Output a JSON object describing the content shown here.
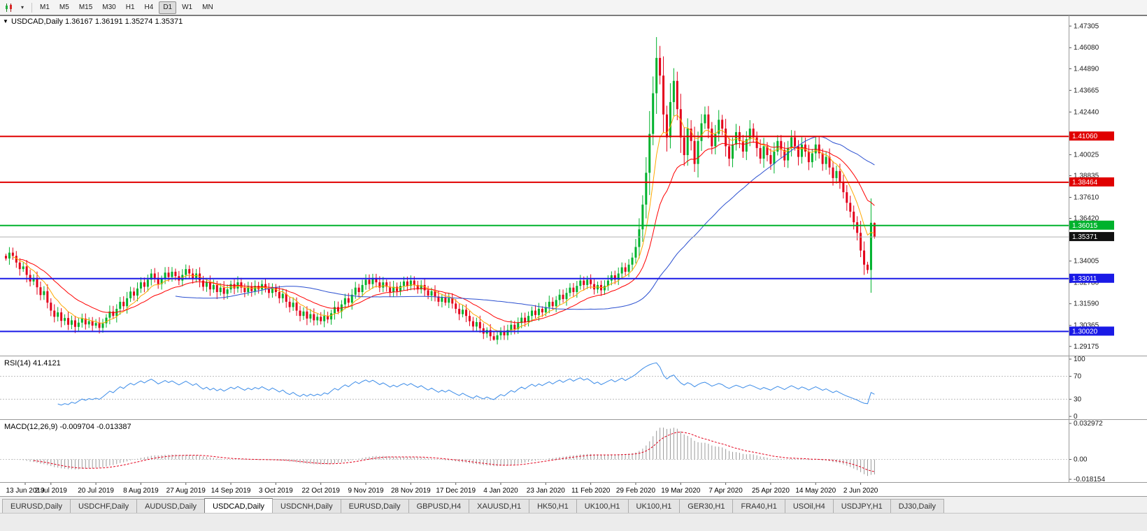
{
  "toolbar": {
    "chart_mode_icon": "candlestick-chart",
    "dropdown_icon": "chevron-down",
    "timeframes": [
      "M1",
      "M5",
      "M15",
      "M30",
      "H1",
      "H4",
      "D1",
      "W1",
      "MN"
    ],
    "active_timeframe": "D1"
  },
  "chart": {
    "title_line": "USDCAD,Daily 1.36167 1.36191 1.35274 1.35371",
    "symbol": "USDCAD",
    "timeframe": "Daily",
    "collapse_icon": "▼"
  },
  "panels": {
    "rsi_label": "RSI(14) 41.4121",
    "macd_label": "MACD(12,26,9) -0.009704 -0.013387"
  },
  "colors": {
    "up": "#00b22d",
    "down": "#e3001b",
    "ma_fast": "#ffa800",
    "ma_mid": "#ff0000",
    "ma_slow": "#2a4fd0",
    "rsi_line": "#3c8ce8",
    "macd_hist": "#9a9a9a",
    "macd_signal": "#e3001b",
    "line_red": "#e00000",
    "line_green": "#00b22d",
    "line_blue": "#1a1ae6",
    "current_label_bg": "#111111"
  },
  "chart_data": {
    "type": "candlestick",
    "symbol": "USDCAD",
    "period": "Daily",
    "visible_quote": {
      "open": 1.36167,
      "high": 1.36191,
      "low": 1.35274,
      "close": 1.35371
    },
    "price_range": {
      "max": 1.4775,
      "min": 1.2885
    },
    "y_ticks": [
      1.47305,
      1.4608,
      1.4489,
      1.43665,
      1.4244,
      1.40025,
      1.38835,
      1.3761,
      1.3642,
      1.34005,
      1.3278,
      1.3159,
      1.30365,
      1.29175
    ],
    "hlines": [
      {
        "price": 1.4106,
        "label": "1.41060",
        "color": "#e00000"
      },
      {
        "price": 1.38464,
        "label": "1.38464",
        "color": "#e00000"
      },
      {
        "price": 1.36015,
        "label": "1.36015",
        "color": "#00b22d"
      },
      {
        "price": 1.33011,
        "label": "1.33011",
        "color": "#1a1ae6"
      },
      {
        "price": 1.3002,
        "label": "1.30020",
        "color": "#1a1ae6"
      }
    ],
    "current_price": {
      "price": 1.35371,
      "label": "1.35371"
    },
    "x_labels": [
      "13 Jun 2019",
      "2 Jul 2019",
      "20 Jul 2019",
      "8 Aug 2019",
      "27 Aug 2019",
      "14 Sep 2019",
      "3 Oct 2019",
      "22 Oct 2019",
      "9 Nov 2019",
      "28 Nov 2019",
      "17 Dec 2019",
      "4 Jan 2020",
      "23 Jan 2020",
      "11 Feb 2020",
      "29 Feb 2020",
      "19 Mar 2020",
      "7 Apr 2020",
      "25 Apr 2020",
      "14 May 2020",
      "2 Jun 2020"
    ],
    "x_label_every_n_candles": 13,
    "closes": [
      1.3415,
      1.3448,
      1.343,
      1.3392,
      1.3355,
      1.337,
      1.3322,
      1.3285,
      1.3305,
      1.3252,
      1.3208,
      1.323,
      1.3165,
      1.312,
      1.3085,
      1.311,
      1.3062,
      1.3078,
      1.304,
      1.3065,
      1.3028,
      1.3052,
      1.3075,
      1.3042,
      1.306,
      1.3035,
      1.305,
      1.3022,
      1.3048,
      1.308,
      1.3115,
      1.309,
      1.313,
      1.317,
      1.3145,
      1.319,
      1.3228,
      1.3205,
      1.3245,
      1.328,
      1.3255,
      1.3295,
      1.333,
      1.3305,
      1.327,
      1.33,
      1.3335,
      1.331,
      1.334,
      1.3315,
      1.329,
      1.3322,
      1.3355,
      1.333,
      1.3302,
      1.333,
      1.329,
      1.3255,
      1.3282,
      1.324,
      1.3265,
      1.3225,
      1.325,
      1.3215,
      1.324,
      1.327,
      1.3245,
      1.328,
      1.325,
      1.3225,
      1.3255,
      1.323,
      1.326,
      1.324,
      1.327,
      1.3245,
      1.322,
      1.325,
      1.3225,
      1.319,
      1.3215,
      1.317,
      1.314,
      1.3165,
      1.312,
      1.309,
      1.3115,
      1.3075,
      1.31,
      1.3065,
      1.3085,
      1.306,
      1.309,
      1.307,
      1.3105,
      1.314,
      1.3115,
      1.3155,
      1.319,
      1.3165,
      1.321,
      1.325,
      1.3225,
      1.3265,
      1.3295,
      1.327,
      1.3305,
      1.328,
      1.325,
      1.328,
      1.3255,
      1.3225,
      1.3255,
      1.323,
      1.326,
      1.3285,
      1.326,
      1.329,
      1.3265,
      1.324,
      1.3265,
      1.3235,
      1.3205,
      1.323,
      1.32,
      1.317,
      1.3195,
      1.3165,
      1.319,
      1.316,
      1.313,
      1.31,
      1.3125,
      1.309,
      1.306,
      1.303,
      1.3055,
      1.302,
      1.299,
      1.301,
      1.2975,
      1.2955,
      1.298,
      1.3005,
      1.298,
      1.301,
      1.304,
      1.3015,
      1.305,
      1.308,
      1.3055,
      1.309,
      1.312,
      1.3095,
      1.313,
      1.311,
      1.314,
      1.317,
      1.3145,
      1.318,
      1.321,
      1.3185,
      1.322,
      1.325,
      1.3225,
      1.326,
      1.329,
      1.3265,
      1.3295,
      1.327,
      1.324,
      1.3265,
      1.3235,
      1.326,
      1.329,
      1.332,
      1.3295,
      1.333,
      1.3365,
      1.334,
      1.338,
      1.342,
      1.348,
      1.358,
      1.372,
      1.39,
      1.412,
      1.435,
      1.455,
      1.445,
      1.423,
      1.41,
      1.43,
      1.442,
      1.426,
      1.41,
      1.4,
      1.415,
      1.408,
      1.395,
      1.408,
      1.418,
      1.423,
      1.415,
      1.405,
      1.412,
      1.42,
      1.415,
      1.405,
      1.398,
      1.406,
      1.413,
      1.408,
      1.402,
      1.409,
      1.415,
      1.41,
      1.404,
      1.398,
      1.405,
      1.4,
      1.395,
      1.402,
      1.408,
      1.403,
      1.397,
      1.404,
      1.41,
      1.405,
      1.399,
      1.406,
      1.402,
      1.396,
      1.401,
      1.406,
      1.401,
      1.395,
      1.399,
      1.393,
      1.387,
      1.391,
      1.385,
      1.379,
      1.373,
      1.368,
      1.362,
      1.356,
      1.346,
      1.338,
      1.335,
      1.3617,
      1.3537
    ],
    "extremes": {
      "high_index": 188,
      "high": 1.4668,
      "low_index": 141,
      "low": 1.295
    },
    "indicators": {
      "rsi": {
        "period": 14,
        "current_value": "41.4121",
        "axis_ticks": [
          100,
          70,
          30,
          0
        ],
        "grid_levels": [
          70,
          30
        ]
      },
      "macd": {
        "params": "12,26,9",
        "current_values": "-0.009704 -0.013387",
        "axis_ticks": [
          "0.032972",
          "0.00",
          "-0.018154"
        ],
        "y_range": {
          "max": 0.0335,
          "min": -0.0185
        }
      }
    }
  },
  "tabs": {
    "items": [
      "EURUSD,Daily",
      "USDCHF,Daily",
      "AUDUSD,Daily",
      "USDCAD,Daily",
      "USDCNH,Daily",
      "EURUSD,Daily",
      "GBPUSD,H4",
      "XAUUSD,H1",
      "HK50,H1",
      "UK100,H1",
      "UK100,H1",
      "GER30,H1",
      "FRA40,H1",
      "USOil,H4",
      "USDJPY,H1",
      "DJ30,Daily"
    ],
    "active_index": 3
  }
}
